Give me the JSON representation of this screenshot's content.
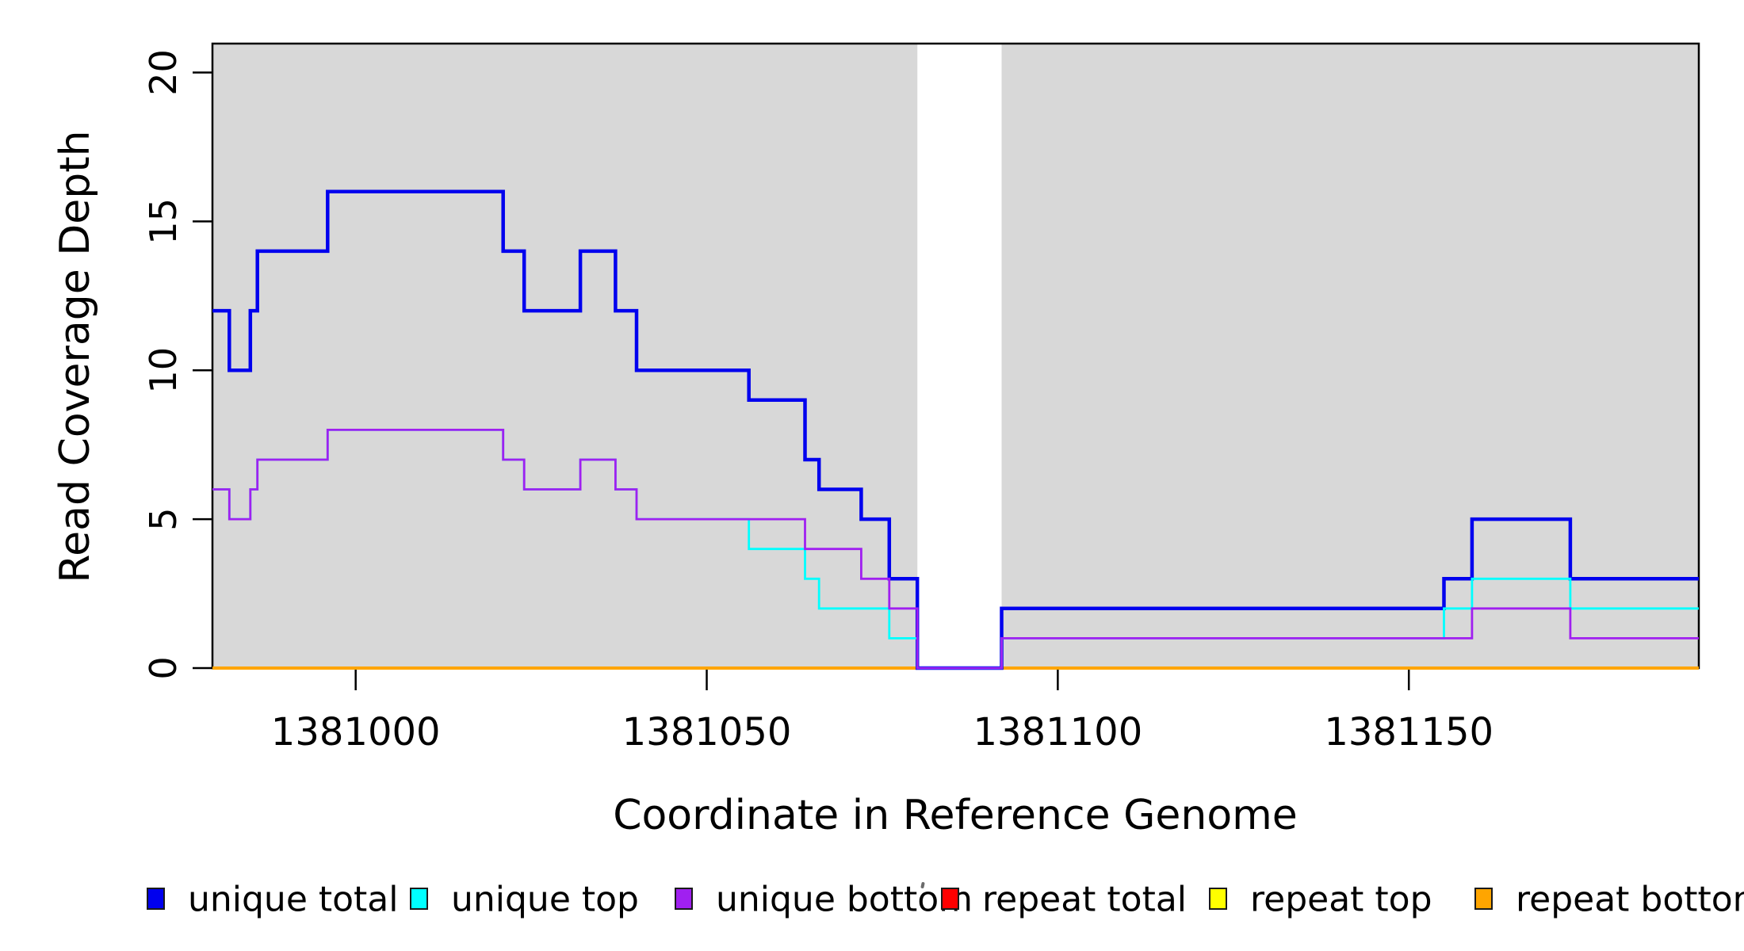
{
  "chart_data": {
    "type": "step-line",
    "title": "",
    "xlabel": "Coordinate in Reference Genome",
    "ylabel": "Read Coverage Depth",
    "xlim": [
      1380979.6,
      1381191.3
    ],
    "ylim": [
      0,
      20.97
    ],
    "x_ticks": [
      1381000,
      1381050,
      1381100,
      1381150
    ],
    "y_ticks": [
      0,
      5,
      10,
      15,
      20
    ],
    "grid": false,
    "plot_background": "#d8d8d8",
    "gap_region": {
      "from": 1381080,
      "to": 1381092,
      "color": "#ffffff"
    },
    "x_end": 1381191.3,
    "series": [
      {
        "name": "repeat total",
        "color": "#ff0000",
        "steps": [
          [
            1380979.6,
            0
          ]
        ]
      },
      {
        "name": "repeat top",
        "color": "#ffff00",
        "steps": [
          [
            1380979.6,
            0
          ]
        ]
      },
      {
        "name": "repeat bottom",
        "color": "#ffa500",
        "steps": [
          [
            1380979.6,
            0
          ]
        ]
      },
      {
        "name": "unique total",
        "color": "#0000ee",
        "steps": [
          [
            1380979.6,
            12
          ],
          [
            1380982,
            10
          ],
          [
            1380985,
            12
          ],
          [
            1380986,
            14
          ],
          [
            1380996,
            16
          ],
          [
            1381021,
            14
          ],
          [
            1381024,
            12
          ],
          [
            1381032,
            14
          ],
          [
            1381037,
            12
          ],
          [
            1381040,
            10
          ],
          [
            1381056,
            9
          ],
          [
            1381064,
            7
          ],
          [
            1381066,
            6
          ],
          [
            1381072,
            5
          ],
          [
            1381076,
            3
          ],
          [
            1381080,
            0
          ],
          [
            1381092,
            2
          ],
          [
            1381155,
            3
          ],
          [
            1381159,
            5
          ],
          [
            1381173,
            3
          ]
        ]
      },
      {
        "name": "unique top",
        "color": "#00ffff",
        "steps": [
          [
            1380979.6,
            6
          ],
          [
            1380982,
            5
          ],
          [
            1380985,
            6
          ],
          [
            1380986,
            7
          ],
          [
            1380996,
            8
          ],
          [
            1381021,
            7
          ],
          [
            1381024,
            6
          ],
          [
            1381032,
            7
          ],
          [
            1381037,
            6
          ],
          [
            1381040,
            5
          ],
          [
            1381056,
            4
          ],
          [
            1381064,
            3
          ],
          [
            1381066,
            2
          ],
          [
            1381076,
            1
          ],
          [
            1381080,
            0
          ],
          [
            1381092,
            1
          ],
          [
            1381155,
            2
          ],
          [
            1381159,
            3
          ],
          [
            1381173,
            2
          ]
        ]
      },
      {
        "name": "unique bottom",
        "color": "#a020f0",
        "steps": [
          [
            1380979.6,
            6
          ],
          [
            1380982,
            5
          ],
          [
            1380985,
            6
          ],
          [
            1380986,
            7
          ],
          [
            1380996,
            8
          ],
          [
            1381021,
            7
          ],
          [
            1381024,
            6
          ],
          [
            1381032,
            7
          ],
          [
            1381037,
            6
          ],
          [
            1381040,
            5
          ],
          [
            1381064,
            4
          ],
          [
            1381072,
            3
          ],
          [
            1381076,
            2
          ],
          [
            1381080,
            0
          ],
          [
            1381092,
            1
          ],
          [
            1381159,
            2
          ],
          [
            1381173,
            1
          ]
        ]
      }
    ],
    "legend": [
      {
        "label": "unique total",
        "color": "#0000ee"
      },
      {
        "label": "unique top",
        "color": "#00ffff"
      },
      {
        "label": "unique bottom",
        "color": "#a020f0"
      },
      {
        "label": "repeat total",
        "color": "#ff0000"
      },
      {
        "label": "repeat top",
        "color": "#ffff00"
      },
      {
        "label": "repeat bottom",
        "color": "#ffa500"
      }
    ],
    "legend_position": "bottom"
  }
}
